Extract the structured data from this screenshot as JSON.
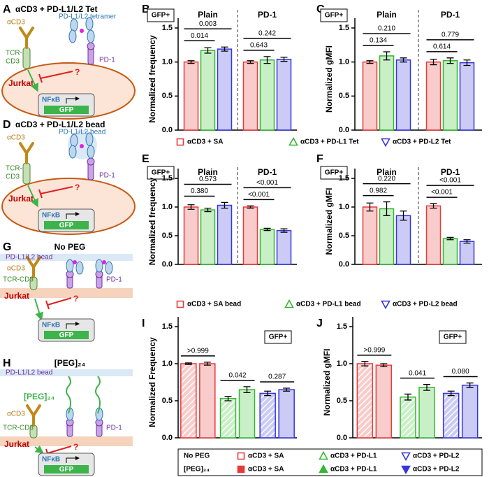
{
  "diagrams": [
    {
      "panel": "A",
      "title": "αCD3 + PD-L1/L2 Tet",
      "acd3": "αCD3",
      "ligand": "PD-L1/L2 tetramer",
      "tcr": [
        "TCR-",
        "CD3"
      ],
      "pd1": "PD-1",
      "cell": "Jurkat",
      "nfkb": "NFκB",
      "gfp": "GFP",
      "question": "?"
    },
    {
      "panel": "D",
      "title": "αCD3 + PD-L1/L2 bead",
      "acd3": "αCD3",
      "ligand": "PD-L1/L2 bead",
      "tcr": [
        "TCR-",
        "CD3"
      ],
      "pd1": "PD-1",
      "cell": "Jurkat",
      "nfkb": "NFκB",
      "gfp": "GFP",
      "question": "?"
    },
    {
      "panel": "G",
      "title": "No PEG",
      "ligand": "PD-L1/L2 bead",
      "acd3": "αCD3",
      "tcr": "TCR-CD3",
      "pd1": "PD-1",
      "cell": "Jurkat",
      "nfkb": "NFκB",
      "gfp": "GFP",
      "question": "?"
    },
    {
      "panel": "H",
      "title": "[PEG]₂₄",
      "ligand": "PD-L1/L2 bead",
      "linker": "[PEG]₂₄",
      "acd3": "αCD3",
      "tcr": "TCR-CD3",
      "pd1": "PD-1",
      "cell": "Jurkat",
      "nfkb": "NFκB",
      "gfp": "GFP",
      "question": "?"
    }
  ],
  "chart_data": [
    {
      "type": "bar",
      "panel": "B",
      "tag": "GFP+",
      "ylabel": "Normalized frequency",
      "categories": [
        "Plain",
        "PD-1"
      ],
      "series": [
        {
          "name": "αCD3 + SA",
          "color": "#e8393a",
          "fill": "#f9cccc",
          "marker": "square",
          "values": [
            1.0,
            1.0
          ],
          "errors": [
            0.02,
            0.02
          ]
        },
        {
          "name": "αCD3 + PD-L1 Tet",
          "color": "#35b535",
          "fill": "#c9efc6",
          "marker": "triangle",
          "values": [
            1.17,
            1.03
          ],
          "errors": [
            0.04,
            0.05
          ]
        },
        {
          "name": "αCD3 + PD-L2 Tet",
          "color": "#3535e0",
          "fill": "#cbcbf6",
          "marker": "triangle-down",
          "values": [
            1.19,
            1.04
          ],
          "errors": [
            0.03,
            0.03
          ]
        }
      ],
      "ylim": [
        0,
        1.5
      ],
      "yticks": [
        {
          "value": 0,
          "label": "0.0"
        },
        0.5,
        {
          "value": 1,
          "label": "1.0"
        },
        1.5
      ],
      "comparisons": [
        [
          "0.014",
          "0.003"
        ],
        [
          "0.643",
          "0.242"
        ]
      ]
    },
    {
      "type": "bar",
      "panel": "C",
      "tag": "GFP+",
      "ylabel": "Normalized gMFI",
      "categories": [
        "Plain",
        "PD-1"
      ],
      "series": [
        {
          "color": "#e8393a",
          "fill": "#f9cccc",
          "values": [
            1.0,
            1.0
          ],
          "errors": [
            0.02,
            0.04
          ]
        },
        {
          "color": "#35b535",
          "fill": "#c9efc6",
          "values": [
            1.09,
            1.02
          ],
          "errors": [
            0.06,
            0.04
          ]
        },
        {
          "color": "#3535e0",
          "fill": "#cbcbf6",
          "values": [
            1.03,
            0.99
          ],
          "errors": [
            0.03,
            0.04
          ]
        }
      ],
      "ylim": [
        0,
        1.5
      ],
      "yticks": [
        {
          "value": 0,
          "label": "0.0"
        },
        0.5,
        {
          "value": 1,
          "label": "1.0"
        },
        1.5
      ],
      "comparisons": [
        [
          "0.134",
          "0.210"
        ],
        [
          "0.614",
          "0.779"
        ]
      ]
    },
    {
      "type": "bar",
      "panel": "E",
      "tag": "GFP+",
      "ylabel": "Normalized frequency",
      "categories": [
        "Plain",
        "PD-1"
      ],
      "series": [
        {
          "name": "αCD3 + SA bead",
          "color": "#e8393a",
          "fill": "#f9cccc",
          "marker": "square",
          "values": [
            1.0,
            1.0
          ],
          "errors": [
            0.04,
            0.02
          ]
        },
        {
          "name": "αCD3 + PD-L1 bead",
          "color": "#35b535",
          "fill": "#c9efc6",
          "marker": "triangle",
          "values": [
            0.95,
            0.61
          ],
          "errors": [
            0.03,
            0.02
          ]
        },
        {
          "name": "αCD3 + PD-L2 bead",
          "color": "#3535e0",
          "fill": "#cbcbf6",
          "marker": "triangle-down",
          "values": [
            1.03,
            0.59
          ],
          "errors": [
            0.05,
            0.03
          ]
        }
      ],
      "ylim": [
        0,
        1.5
      ],
      "yticks": [
        {
          "value": 0,
          "label": "0.0"
        },
        0.5,
        {
          "value": 1,
          "label": "1.0"
        },
        1.5
      ],
      "comparisons": [
        [
          "0.380",
          "0.573"
        ],
        [
          "<0.001",
          "<0.001"
        ]
      ]
    },
    {
      "type": "bar",
      "panel": "F",
      "tag": "GFP+",
      "ylabel": "Normalized gMFI",
      "categories": [
        "Plain",
        "PD-1"
      ],
      "series": [
        {
          "color": "#e8393a",
          "fill": "#f9cccc",
          "values": [
            1.0,
            1.02
          ],
          "errors": [
            0.07,
            0.04
          ]
        },
        {
          "color": "#35b535",
          "fill": "#c9efc6",
          "values": [
            0.97,
            0.45
          ],
          "errors": [
            0.12,
            0.02
          ]
        },
        {
          "color": "#3535e0",
          "fill": "#cbcbf6",
          "values": [
            0.85,
            0.4
          ],
          "errors": [
            0.08,
            0.03
          ]
        }
      ],
      "ylim": [
        0,
        1.5
      ],
      "yticks": [
        {
          "value": 0,
          "label": "0.0"
        },
        0.5,
        {
          "value": 1,
          "label": "1.0"
        },
        1.5
      ],
      "comparisons": [
        [
          "0.982",
          "0.220"
        ],
        [
          "<0.001",
          "<0.001"
        ]
      ]
    },
    {
      "type": "bar",
      "panel": "I",
      "tag": "GFP+",
      "ylabel": "Normalized Frequency",
      "categories": [
        null,
        null,
        null
      ],
      "colors": [
        "#e8393a",
        "#35b535",
        "#3535e0"
      ],
      "fills": [
        "#f9cccc",
        "#c9efc6",
        "#cbcbf6"
      ],
      "markers": [
        "square",
        "triangle",
        "triangle-down"
      ],
      "legend_entries": [
        "αCD3 + SA",
        "αCD3 + PD-L1",
        "αCD3 + PD-L2"
      ],
      "series": [
        {
          "name": "No PEG",
          "hatched": true,
          "filled": false,
          "values": [
            1.0,
            0.53,
            0.6
          ],
          "errors": [
            0.01,
            0.03,
            0.03
          ]
        },
        {
          "name": "[PEG]₂₄",
          "hatched": false,
          "filled": true,
          "values": [
            1.0,
            0.65,
            0.65
          ],
          "errors": [
            0.02,
            0.04,
            0.02
          ]
        }
      ],
      "ylim": [
        0,
        1.5
      ],
      "yticks": [
        {
          "value": 0,
          "label": "0.0"
        },
        0.5,
        {
          "value": 1,
          "label": "1.0"
        },
        1.5
      ],
      "comparisons": [
        [
          ">0.999"
        ],
        [
          "0.042"
        ],
        [
          "0.287"
        ]
      ]
    },
    {
      "type": "bar",
      "panel": "J",
      "tag": "GFP+",
      "ylabel": "Normalized gMFI",
      "categories": [
        null,
        null,
        null
      ],
      "colors": [
        "#e8393a",
        "#35b535",
        "#3535e0"
      ],
      "fills": [
        "#f9cccc",
        "#c9efc6",
        "#cbcbf6"
      ],
      "series": [
        {
          "hatched": true,
          "values": [
            1.0,
            0.55,
            0.6
          ],
          "errors": [
            0.03,
            0.04,
            0.03
          ]
        },
        {
          "hatched": false,
          "values": [
            0.98,
            0.68,
            0.71
          ],
          "errors": [
            0.02,
            0.04,
            0.03
          ]
        }
      ],
      "ylim": [
        0,
        1.5
      ],
      "yticks": [
        {
          "value": 0,
          "label": "0.0"
        },
        0.5,
        {
          "value": 1,
          "label": "1.0"
        },
        1.5
      ],
      "comparisons": [
        [
          ">0.999"
        ],
        [
          "0.041"
        ],
        [
          "0.080"
        ]
      ]
    }
  ]
}
